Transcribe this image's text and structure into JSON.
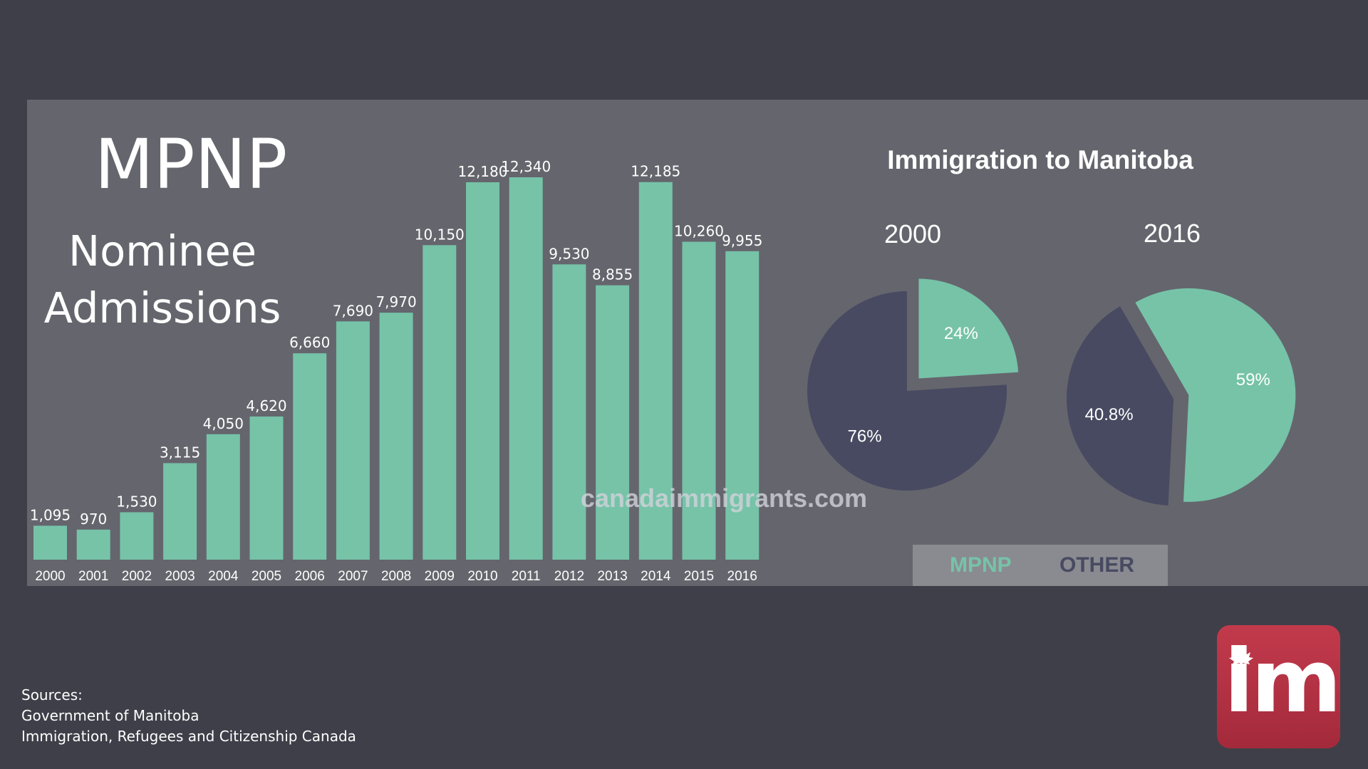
{
  "header": {
    "title": "MPNP",
    "subtitle_line1": "Nominee",
    "subtitle_line2": "Admissions"
  },
  "watermark": "canadaimmigrants.com",
  "sources": {
    "label": "Sources:",
    "lines": [
      "Government of Manitoba",
      "Immigration, Refugees and Citizenship Canada"
    ]
  },
  "logo": {
    "text": "im",
    "icon": "maple-leaf-icon"
  },
  "colors": {
    "mpnp": "#76c3a8",
    "other": "#484a61",
    "panel": "#65656d",
    "background": "#3f3f49",
    "logo": "#b5303f"
  },
  "chart_data": [
    {
      "type": "bar",
      "title": "MPNP Nominee Admissions",
      "categories": [
        "2000",
        "2001",
        "2002",
        "2003",
        "2004",
        "2005",
        "2006",
        "2007",
        "2008",
        "2009",
        "2010",
        "2011",
        "2012",
        "2013",
        "2014",
        "2015",
        "2016"
      ],
      "values": [
        1095,
        970,
        1530,
        3115,
        4050,
        4620,
        6660,
        7690,
        7970,
        10150,
        12180,
        12340,
        9530,
        8855,
        12185,
        10260,
        9955
      ],
      "value_labels": [
        "1,095",
        "970",
        "1,530",
        "3,115",
        "4,050",
        "4,620",
        "6,660",
        "7,690",
        "7,970",
        "10,150",
        "12,180",
        "12,340",
        "9,530",
        "8,855",
        "12,185",
        "10,260",
        "9,955"
      ],
      "xlabel": "",
      "ylabel": "",
      "ylim": [
        0,
        12340
      ],
      "grid": false
    },
    {
      "type": "pie",
      "title": "Immigration to Manitoba",
      "pies": [
        {
          "label": "2000",
          "slices": [
            {
              "name": "MPNP",
              "value": 24,
              "label": "24%"
            },
            {
              "name": "OTHER",
              "value": 76,
              "label": "76%"
            }
          ]
        },
        {
          "label": "2016",
          "slices": [
            {
              "name": "MPNP",
              "value": 59,
              "label": "59%"
            },
            {
              "name": "OTHER",
              "value": 40.8,
              "label": "40.8%"
            }
          ]
        }
      ],
      "legend": [
        "MPNP",
        "OTHER"
      ],
      "legend_position": "bottom"
    }
  ]
}
